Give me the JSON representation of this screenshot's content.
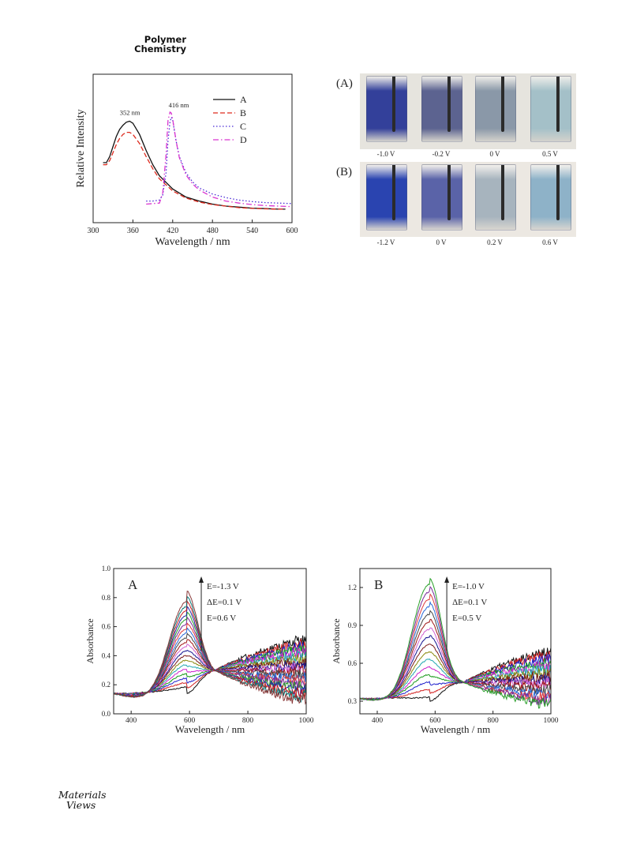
{
  "header": {
    "journal_line1": "Polymer",
    "journal_line2": "Chemistry"
  },
  "footer": {
    "logo_line1": "Materials",
    "logo_line2": "Views"
  },
  "photos": {
    "panel_a_label": "(A)",
    "panel_b_label": "(B)",
    "panel_a_captions": [
      "-1.0 V",
      "-0.2 V",
      "0 V",
      "0.5 V"
    ],
    "panel_b_captions": [
      "-1.2 V",
      "0 V",
      "0.2 V",
      "0.6 V"
    ],
    "panel_a_colors": [
      "#33409a",
      "#5c6390",
      "#8a98a8",
      "#a4c0c8"
    ],
    "panel_b_colors": [
      "#2a44b0",
      "#5a63a8",
      "#a7b4be",
      "#8eb2c8"
    ]
  },
  "chart_data": [
    {
      "type": "line",
      "xlabel": "Wavelength / nm",
      "ylabel": "Relative Intensity",
      "xlim": [
        300,
        600
      ],
      "xticks": [
        300,
        360,
        420,
        480,
        540,
        600
      ],
      "y_ticklabels": false,
      "legend_position": "top-right",
      "annotations": [
        {
          "text": "352 nm",
          "x": 352
        },
        {
          "text": "416 nm",
          "x": 416
        }
      ],
      "series": [
        {
          "name": "A",
          "color": "#111111",
          "dash": "solid",
          "x": [
            315,
            320,
            325,
            330,
            335,
            340,
            345,
            350,
            355,
            360,
            370,
            380,
            390,
            400,
            420,
            440,
            460,
            480,
            500,
            520,
            540,
            560,
            580,
            590
          ],
          "y": [
            0.5,
            0.5,
            0.56,
            0.66,
            0.76,
            0.83,
            0.87,
            0.9,
            0.91,
            0.89,
            0.78,
            0.62,
            0.48,
            0.37,
            0.24,
            0.16,
            0.12,
            0.09,
            0.07,
            0.06,
            0.05,
            0.045,
            0.04,
            0.04
          ]
        },
        {
          "name": "B",
          "color": "#dd2a1e",
          "dash": "dashed",
          "x": [
            315,
            320,
            325,
            330,
            335,
            340,
            345,
            350,
            355,
            360,
            370,
            380,
            390,
            400,
            420,
            440,
            460,
            480,
            500,
            520,
            540,
            560,
            580,
            590
          ],
          "y": [
            0.48,
            0.48,
            0.52,
            0.6,
            0.68,
            0.74,
            0.78,
            0.8,
            0.8,
            0.78,
            0.69,
            0.56,
            0.44,
            0.34,
            0.22,
            0.15,
            0.11,
            0.085,
            0.07,
            0.055,
            0.048,
            0.043,
            0.04,
            0.04
          ]
        },
        {
          "name": "C",
          "color": "#4a2bd6",
          "dash": "dotted",
          "x": [
            380,
            390,
            400,
            405,
            410,
            413,
            416,
            418,
            420,
            425,
            430,
            440,
            450,
            460,
            480,
            500,
            520,
            540,
            560,
            580,
            600
          ],
          "y": [
            0.12,
            0.12,
            0.13,
            0.18,
            0.4,
            0.72,
            0.9,
            0.95,
            0.92,
            0.72,
            0.56,
            0.4,
            0.31,
            0.25,
            0.19,
            0.155,
            0.13,
            0.115,
            0.105,
            0.1,
            0.095
          ]
        },
        {
          "name": "D",
          "color": "#d936d0",
          "dash": "dashdot",
          "x": [
            380,
            390,
            400,
            405,
            410,
            413,
            416,
            418,
            420,
            425,
            430,
            440,
            450,
            460,
            480,
            500,
            520,
            540,
            560,
            580,
            600
          ],
          "y": [
            0.09,
            0.095,
            0.1,
            0.2,
            0.58,
            0.92,
            1.0,
            0.99,
            0.93,
            0.72,
            0.55,
            0.38,
            0.29,
            0.23,
            0.16,
            0.12,
            0.1,
            0.085,
            0.075,
            0.07,
            0.065
          ]
        }
      ]
    },
    {
      "type": "line",
      "panel_label": "A",
      "xlabel": "Wavelength / nm",
      "ylabel": "Absorbance",
      "xlim": [
        340,
        1000
      ],
      "ylim": [
        0.0,
        1.0
      ],
      "xticks": [
        400,
        600,
        800,
        1000
      ],
      "yticks": [
        0.0,
        0.2,
        0.4,
        0.6,
        0.8,
        1.0
      ],
      "ytick_labels": [
        "0.0",
        "0.2",
        "0.4",
        "0.6",
        "0.8",
        "1.0"
      ],
      "annotations": [
        "E=-1.3 V",
        "ΔE=0.1 V",
        "E=0.6 V"
      ],
      "series_count": 20,
      "colors": [
        "#111111",
        "#d22222",
        "#2222cc",
        "#1a9a1a",
        "#cc22cc",
        "#22a8b0",
        "#8a8a10",
        "#7a1a1a",
        "#141490",
        "#d060d0",
        "#a01818",
        "#444444",
        "#2a6ad8",
        "#e03c3c",
        "#7a2a9a",
        "#2aa02a",
        "#2424a8",
        "#c81c1c",
        "#0a7a7a",
        "#8a3a3a"
      ],
      "curves": {
        "start_value": 0.14,
        "isosbestic": {
          "x": 690,
          "y": 0.3
        },
        "peak_x": 590,
        "peak_min": 0.14,
        "peak_max": 0.85,
        "nir_min": 0.5,
        "nir_max": 0.1
      }
    },
    {
      "type": "line",
      "panel_label": "B",
      "xlabel": "Wavelength / nm",
      "ylabel": "Absorbance",
      "xlim": [
        340,
        1000
      ],
      "ylim": [
        0.2,
        1.35
      ],
      "xticks": [
        400,
        600,
        800,
        1000
      ],
      "yticks": [
        0.3,
        0.6,
        0.9,
        1.2
      ],
      "ytick_labels": [
        "0.3",
        "0.6",
        "0.9",
        "1.2"
      ],
      "annotations": [
        "E=-1.0 V",
        "ΔE=0.1 V",
        "E=0.5 V"
      ],
      "series_count": 16,
      "colors": [
        "#111111",
        "#d22222",
        "#2222cc",
        "#1a9a1a",
        "#cc22cc",
        "#22a8b0",
        "#8a8a10",
        "#7a1a1a",
        "#141490",
        "#d060d0",
        "#a01818",
        "#444444",
        "#2a6ad8",
        "#e03c3c",
        "#7a2a9a",
        "#2aa02a"
      ],
      "curves": {
        "start_value": 0.32,
        "isosbestic": {
          "x": 700,
          "y": 0.45
        },
        "peak_x": 580,
        "peak_min": 0.3,
        "peak_max": 1.28,
        "nir_min": 0.68,
        "nir_max": 0.28
      }
    }
  ]
}
